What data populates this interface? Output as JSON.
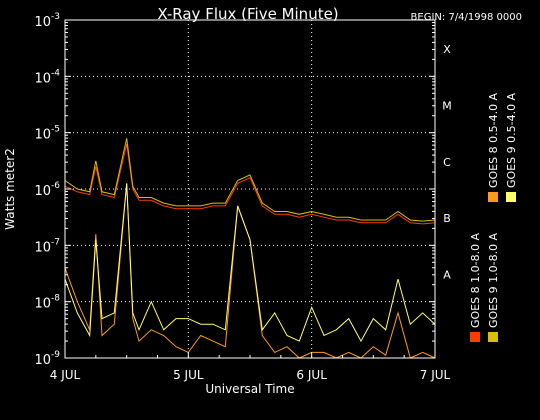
{
  "chart_data": {
    "type": "line",
    "title": "X-Ray Flux (Five Minute)",
    "begin_label": "BEGIN: 7/4/1998 0000",
    "xlabel": "Universal Time",
    "ylabel": "Watts meter2",
    "x_ticks": [
      "4 JUL",
      "5 JUL",
      "6 JUL",
      "7 JUL"
    ],
    "xlim_days": [
      4,
      7
    ],
    "ylim_exponent": [
      -9,
      -3
    ],
    "y_scale": "log",
    "y_tick_exponents": [
      -9,
      -8,
      -7,
      -6,
      -5,
      -4,
      -3
    ],
    "y_tick_base": "10",
    "class_labels": [
      {
        "label": "X",
        "exponent": -4
      },
      {
        "label": "M",
        "exponent": -5
      },
      {
        "label": "C",
        "exponent": -6
      },
      {
        "label": "B",
        "exponent": -7
      },
      {
        "label": "A",
        "exponent": -8
      }
    ],
    "grid": true,
    "legend": [
      {
        "name": "GOES 8 1.0-8.0 A",
        "color": "#ff3c00"
      },
      {
        "name": "GOES 8 0.5-4.0 A",
        "color": "#ff9a1a"
      },
      {
        "name": "GOES 9 1.0-8.0 A",
        "color": "#d8c000"
      },
      {
        "name": "GOES 9 0.5-4.0 A",
        "color": "#ffff66"
      }
    ],
    "series": [
      {
        "name": "GOES 8 1.0-8.0 A",
        "color": "#ff3c00",
        "x": [
          4.0,
          4.1,
          4.2,
          4.25,
          4.3,
          4.4,
          4.5,
          4.55,
          4.6,
          4.7,
          4.8,
          4.9,
          5.0,
          5.1,
          5.2,
          5.3,
          5.4,
          5.5,
          5.6,
          5.7,
          5.8,
          5.9,
          6.0,
          6.1,
          6.2,
          6.3,
          6.4,
          6.5,
          6.6,
          6.7,
          6.8,
          6.9,
          7.0
        ],
        "y_exp": [
          -5.95,
          -6.05,
          -6.1,
          -5.6,
          -6.1,
          -6.15,
          -5.2,
          -6.0,
          -6.2,
          -6.2,
          -6.3,
          -6.35,
          -6.35,
          -6.35,
          -6.3,
          -6.3,
          -5.9,
          -5.8,
          -6.3,
          -6.45,
          -6.45,
          -6.5,
          -6.45,
          -6.5,
          -6.55,
          -6.55,
          -6.6,
          -6.6,
          -6.6,
          -6.45,
          -6.6,
          -6.62,
          -6.6
        ]
      },
      {
        "name": "GOES 8 0.5-4.0 A",
        "color": "#ff9a1a",
        "x": [
          4.0,
          4.1,
          4.2,
          4.25,
          4.3,
          4.4,
          4.5,
          4.55,
          4.6,
          4.7,
          4.8,
          4.9,
          5.0,
          5.1,
          5.2,
          5.3,
          5.4,
          5.5,
          5.6,
          5.7,
          5.8,
          5.9,
          6.0,
          6.1,
          6.2,
          6.3,
          6.4,
          6.5,
          6.6,
          6.7,
          6.8,
          6.9,
          7.0
        ],
        "y_exp": [
          -7.4,
          -8.0,
          -8.5,
          -6.8,
          -8.6,
          -8.4,
          -5.9,
          -8.3,
          -8.7,
          -8.5,
          -8.6,
          -8.8,
          -8.9,
          -8.6,
          -8.7,
          -8.8,
          -6.3,
          -6.9,
          -8.6,
          -8.9,
          -8.8,
          -9.0,
          -8.9,
          -8.9,
          -9.0,
          -8.9,
          -9.0,
          -8.8,
          -8.95,
          -8.2,
          -9.0,
          -8.9,
          -9.0
        ]
      },
      {
        "name": "GOES 9 1.0-8.0 A",
        "color": "#d8c000",
        "x": [
          4.0,
          4.1,
          4.2,
          4.25,
          4.3,
          4.4,
          4.5,
          4.55,
          4.6,
          4.7,
          4.8,
          4.9,
          5.0,
          5.1,
          5.2,
          5.3,
          5.4,
          5.5,
          5.6,
          5.7,
          5.8,
          5.9,
          6.0,
          6.1,
          6.2,
          6.3,
          6.4,
          6.5,
          6.6,
          6.7,
          6.8,
          6.9,
          7.0
        ],
        "y_exp": [
          -5.85,
          -6.0,
          -6.05,
          -5.5,
          -6.05,
          -6.1,
          -5.1,
          -5.95,
          -6.15,
          -6.15,
          -6.25,
          -6.3,
          -6.3,
          -6.3,
          -6.25,
          -6.25,
          -5.85,
          -5.75,
          -6.25,
          -6.4,
          -6.4,
          -6.45,
          -6.4,
          -6.45,
          -6.5,
          -6.5,
          -6.55,
          -6.55,
          -6.55,
          -6.4,
          -6.55,
          -6.57,
          -6.55
        ]
      },
      {
        "name": "GOES 9 0.5-4.0 A",
        "color": "#ffff66",
        "x": [
          4.0,
          4.1,
          4.2,
          4.25,
          4.3,
          4.4,
          4.5,
          4.55,
          4.6,
          4.7,
          4.8,
          4.9,
          5.0,
          5.1,
          5.2,
          5.3,
          5.4,
          5.5,
          5.6,
          5.7,
          5.8,
          5.9,
          6.0,
          6.1,
          6.2,
          6.3,
          6.4,
          6.5,
          6.6,
          6.7,
          6.8,
          6.9,
          7.0
        ],
        "y_exp": [
          -7.6,
          -8.2,
          -8.6,
          -6.9,
          -8.3,
          -8.2,
          -5.9,
          -8.2,
          -8.5,
          -8.0,
          -8.5,
          -8.3,
          -8.3,
          -8.4,
          -8.4,
          -8.5,
          -6.3,
          -6.9,
          -8.5,
          -8.2,
          -8.6,
          -8.7,
          -8.1,
          -8.6,
          -8.5,
          -8.3,
          -8.7,
          -8.3,
          -8.5,
          -7.6,
          -8.4,
          -8.2,
          -8.4
        ]
      }
    ]
  }
}
